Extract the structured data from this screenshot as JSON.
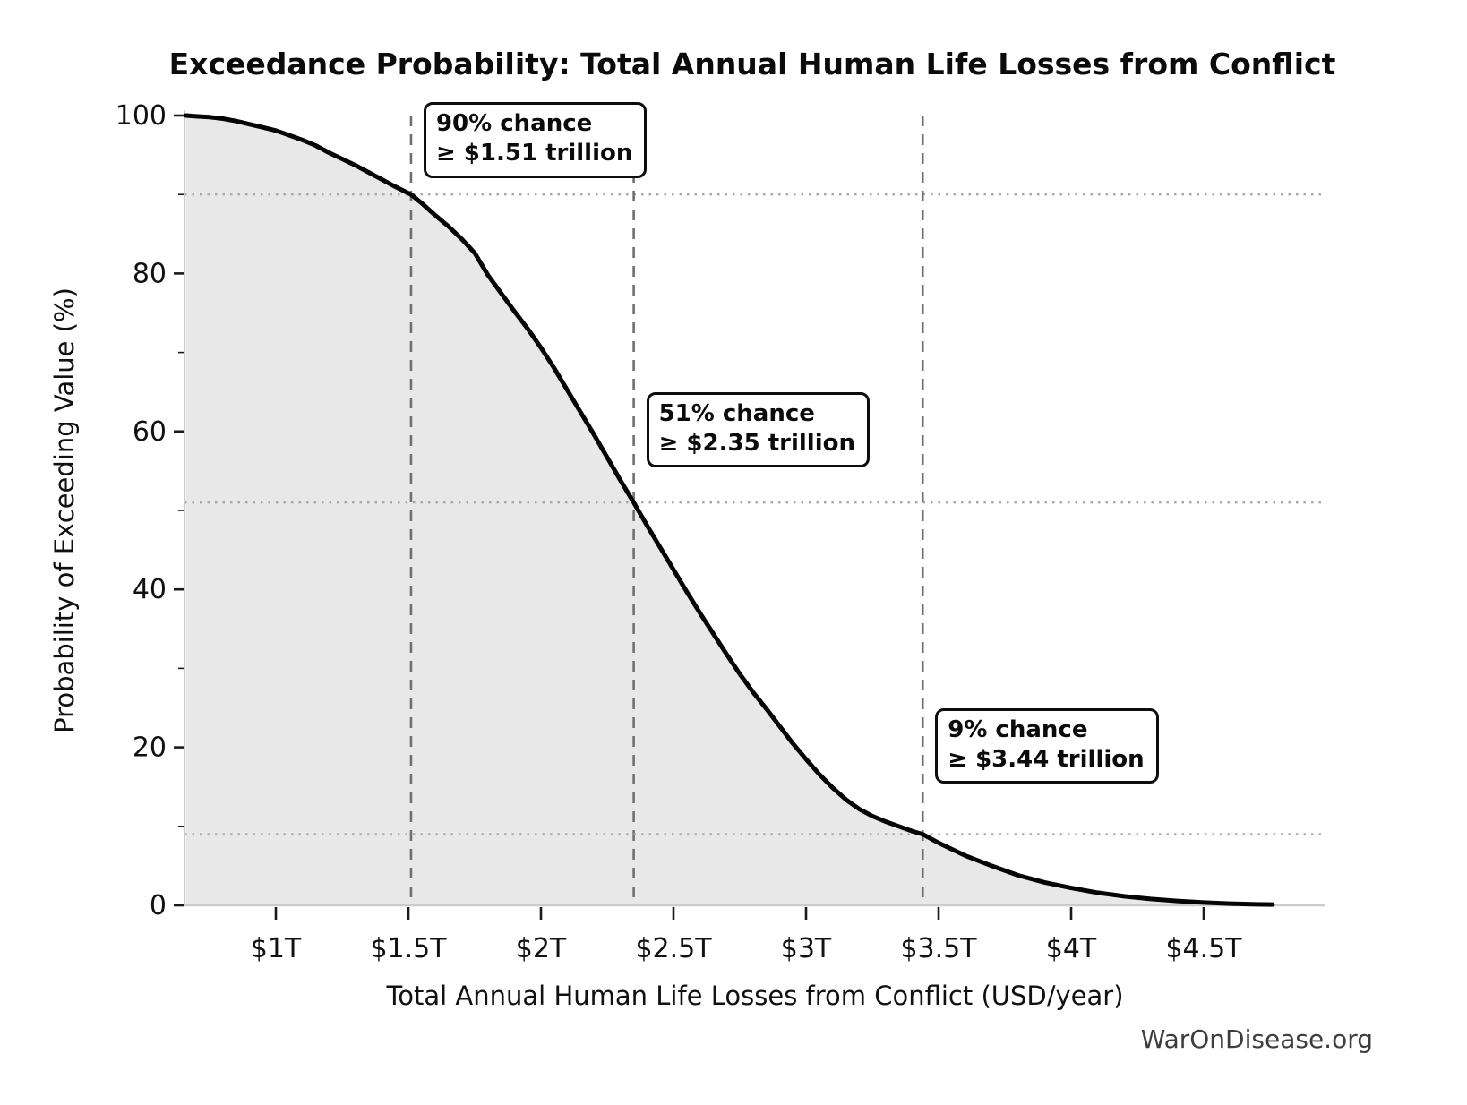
{
  "watermark": {
    "text": "WarOnDisease.org"
  },
  "chart_data": {
    "type": "line",
    "title": "Exceedance Probability: Total Annual Human Life Losses from Conflict",
    "xlabel": "Total Annual Human Life Losses from Conflict (USD/year)",
    "ylabel": "Probability of Exceeding Value (%)",
    "x_unit": "trillion USD per year",
    "xlim": [
      0.66,
      4.96
    ],
    "ylim": [
      0,
      100
    ],
    "grid": "reference lines only",
    "legend": "none",
    "fill_under_curve": true,
    "x_ticks": [
      {
        "value": 1.0,
        "label": "$1T"
      },
      {
        "value": 1.5,
        "label": "$1.5T"
      },
      {
        "value": 2.0,
        "label": "$2T"
      },
      {
        "value": 2.5,
        "label": "$2.5T"
      },
      {
        "value": 3.0,
        "label": "$3T"
      },
      {
        "value": 3.5,
        "label": "$3.5T"
      },
      {
        "value": 4.0,
        "label": "$4T"
      },
      {
        "value": 4.5,
        "label": "$4.5T"
      }
    ],
    "y_ticks": [
      {
        "value": 0,
        "label": "0"
      },
      {
        "value": 20,
        "label": "20"
      },
      {
        "value": 40,
        "label": "40"
      },
      {
        "value": 60,
        "label": "60"
      },
      {
        "value": 80,
        "label": "80"
      },
      {
        "value": 100,
        "label": "100"
      }
    ],
    "y_minor_ticks": [
      10,
      30,
      50,
      70,
      90
    ],
    "series": [
      {
        "name": "exceedance-probability-curve",
        "points": [
          [
            0.66,
            100
          ],
          [
            0.7,
            99.9
          ],
          [
            0.75,
            99.8
          ],
          [
            0.8,
            99.6
          ],
          [
            0.85,
            99.3
          ],
          [
            0.9,
            98.9
          ],
          [
            0.95,
            98.5
          ],
          [
            1.0,
            98.1
          ],
          [
            1.05,
            97.5
          ],
          [
            1.1,
            96.9
          ],
          [
            1.15,
            96.2
          ],
          [
            1.2,
            95.3
          ],
          [
            1.25,
            94.5
          ],
          [
            1.3,
            93.7
          ],
          [
            1.35,
            92.8
          ],
          [
            1.4,
            91.9
          ],
          [
            1.45,
            91.0
          ],
          [
            1.51,
            90.0
          ],
          [
            1.55,
            88.9
          ],
          [
            1.6,
            87.4
          ],
          [
            1.65,
            86.0
          ],
          [
            1.7,
            84.4
          ],
          [
            1.75,
            82.6
          ],
          [
            1.8,
            79.8
          ],
          [
            1.85,
            77.5
          ],
          [
            1.9,
            75.2
          ],
          [
            1.95,
            73.0
          ],
          [
            2.0,
            70.6
          ],
          [
            2.05,
            68.0
          ],
          [
            2.1,
            65.2
          ],
          [
            2.15,
            62.4
          ],
          [
            2.2,
            59.6
          ],
          [
            2.25,
            56.7
          ],
          [
            2.3,
            53.8
          ],
          [
            2.35,
            51.0
          ],
          [
            2.4,
            48.1
          ],
          [
            2.45,
            45.3
          ],
          [
            2.5,
            42.5
          ],
          [
            2.55,
            39.7
          ],
          [
            2.6,
            37.0
          ],
          [
            2.65,
            34.4
          ],
          [
            2.7,
            31.8
          ],
          [
            2.75,
            29.3
          ],
          [
            2.8,
            27.0
          ],
          [
            2.85,
            24.9
          ],
          [
            2.9,
            22.7
          ],
          [
            2.95,
            20.5
          ],
          [
            3.0,
            18.5
          ],
          [
            3.05,
            16.6
          ],
          [
            3.1,
            14.9
          ],
          [
            3.15,
            13.4
          ],
          [
            3.2,
            12.2
          ],
          [
            3.25,
            11.3
          ],
          [
            3.3,
            10.6
          ],
          [
            3.35,
            10.0
          ],
          [
            3.4,
            9.4
          ],
          [
            3.44,
            9.0
          ],
          [
            3.5,
            7.9
          ],
          [
            3.55,
            7.1
          ],
          [
            3.6,
            6.3
          ],
          [
            3.7,
            5.0
          ],
          [
            3.8,
            3.8
          ],
          [
            3.9,
            2.9
          ],
          [
            4.0,
            2.2
          ],
          [
            4.1,
            1.6
          ],
          [
            4.2,
            1.15
          ],
          [
            4.3,
            0.8
          ],
          [
            4.4,
            0.55
          ],
          [
            4.5,
            0.35
          ],
          [
            4.6,
            0.22
          ],
          [
            4.7,
            0.12
          ],
          [
            4.76,
            0.1
          ]
        ]
      }
    ],
    "reference_lines": [
      {
        "probability_pct": 90,
        "value_trillion": 1.51,
        "label_line1": "90% chance",
        "label_line2": "≥ $1.51 trillion",
        "label_center_pct": 97.5
      },
      {
        "probability_pct": 51,
        "value_trillion": 2.35,
        "label_line1": "51% chance",
        "label_line2": "≥ $2.35 trillion",
        "label_center_pct": 60.8
      },
      {
        "probability_pct": 9,
        "value_trillion": 3.44,
        "label_line1": "9% chance",
        "label_line2": "≥ $3.44 trillion",
        "label_center_pct": 20.8
      }
    ],
    "colors": {
      "curve": "#050505",
      "fill": "#e8e8e8",
      "dashed_reference": "#6f6f6f",
      "dotted_reference": "#a8a8a8",
      "spine": "#cccccc",
      "tick": "#1a1a1a",
      "text": "#111111",
      "watermark": "#3d3d3d",
      "annotation_border": "#0d0d0d"
    }
  }
}
